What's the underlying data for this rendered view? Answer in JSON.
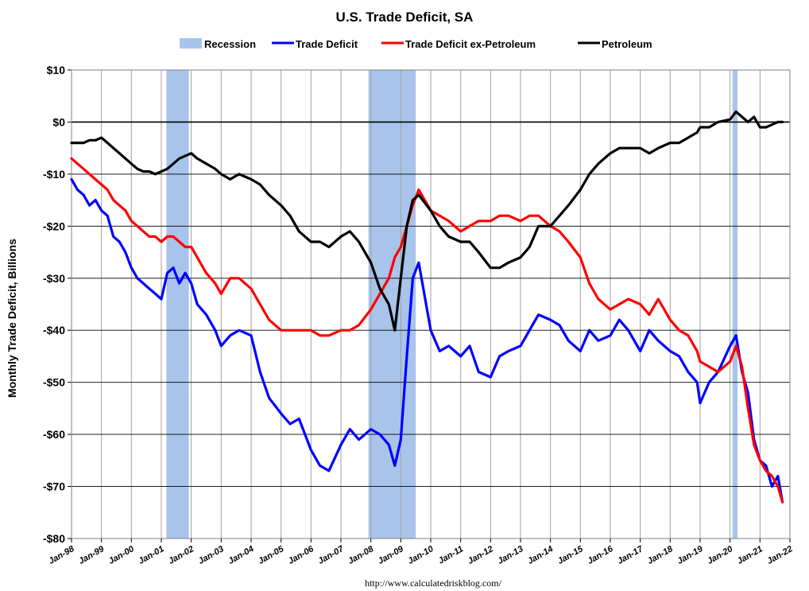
{
  "chart_data": {
    "type": "line",
    "title": "U.S. Trade Deficit, SA",
    "ylabel": "Monthly Trade Deficit, Billions",
    "xlabel": "",
    "source": "http://www.calculatedriskblog.com/",
    "x_start": 1998.0,
    "x_end": 2022.0,
    "ylim": [
      -80,
      10
    ],
    "y_ticks": [
      10,
      0,
      -10,
      -20,
      -30,
      -40,
      -50,
      -60,
      -70,
      -80
    ],
    "y_tick_labels": [
      "$10",
      "$0",
      "-$10",
      "-$20",
      "-$30",
      "-$40",
      "-$50",
      "-$60",
      "-$70",
      "-$80"
    ],
    "x_tick_labels": [
      "Jan-98",
      "Jan-99",
      "Jan-00",
      "Jan-01",
      "Jan-02",
      "Jan-03",
      "Jan-04",
      "Jan-05",
      "Jan-06",
      "Jan-07",
      "Jan-08",
      "Jan-09",
      "Jan-10",
      "Jan-11",
      "Jan-12",
      "Jan-13",
      "Jan-14",
      "Jan-15",
      "Jan-16",
      "Jan-17",
      "Jan-18",
      "Jan-19",
      "Jan-20",
      "Jan-21",
      "Jan-22"
    ],
    "grid": true,
    "legend_position": "top-center",
    "recessions": [
      {
        "start": 2001.17,
        "end": 2001.92
      },
      {
        "start": 2007.92,
        "end": 2009.5
      },
      {
        "start": 2020.08,
        "end": 2020.25
      }
    ],
    "series": [
      {
        "name": "Recession",
        "color": "#a8c4ea",
        "kind": "band"
      },
      {
        "name": "Trade Deficit",
        "color": "#0000ff",
        "x": [
          1998.0,
          1998.2,
          1998.4,
          1998.6,
          1998.8,
          1999.0,
          1999.2,
          1999.4,
          1999.6,
          1999.8,
          2000.0,
          2000.2,
          2000.4,
          2000.6,
          2000.8,
          2001.0,
          2001.2,
          2001.4,
          2001.6,
          2001.8,
          2002.0,
          2002.2,
          2002.5,
          2002.8,
          2003.0,
          2003.3,
          2003.6,
          2004.0,
          2004.3,
          2004.6,
          2005.0,
          2005.3,
          2005.6,
          2006.0,
          2006.3,
          2006.6,
          2007.0,
          2007.3,
          2007.6,
          2008.0,
          2008.3,
          2008.6,
          2008.8,
          2009.0,
          2009.2,
          2009.4,
          2009.6,
          2010.0,
          2010.3,
          2010.6,
          2011.0,
          2011.3,
          2011.6,
          2012.0,
          2012.3,
          2012.6,
          2013.0,
          2013.3,
          2013.6,
          2014.0,
          2014.3,
          2014.6,
          2015.0,
          2015.3,
          2015.6,
          2016.0,
          2016.3,
          2016.6,
          2017.0,
          2017.3,
          2017.6,
          2018.0,
          2018.3,
          2018.6,
          2018.9,
          2019.0,
          2019.3,
          2019.6,
          2020.0,
          2020.2,
          2020.4,
          2020.6,
          2020.8,
          2021.0,
          2021.2,
          2021.4,
          2021.6,
          2021.75
        ],
        "values": [
          -11,
          -13,
          -14,
          -16,
          -15,
          -17,
          -18,
          -22,
          -23,
          -25,
          -28,
          -30,
          -31,
          -32,
          -33,
          -34,
          -29,
          -28,
          -31,
          -29,
          -31,
          -35,
          -37,
          -40,
          -43,
          -41,
          -40,
          -41,
          -48,
          -53,
          -56,
          -58,
          -57,
          -63,
          -66,
          -67,
          -62,
          -59,
          -61,
          -59,
          -60,
          -62,
          -66,
          -61,
          -45,
          -30,
          -27,
          -40,
          -44,
          -43,
          -45,
          -43,
          -48,
          -49,
          -45,
          -44,
          -43,
          -40,
          -37,
          -38,
          -39,
          -42,
          -44,
          -40,
          -42,
          -41,
          -38,
          -40,
          -44,
          -40,
          -42,
          -44,
          -45,
          -48,
          -50,
          -54,
          -50,
          -48,
          -43,
          -41,
          -48,
          -52,
          -61,
          -65,
          -66,
          -70,
          -68,
          -73
        ]
      },
      {
        "name": "Trade Deficit ex-Petroleum",
        "color": "#ff0000",
        "x": [
          1998.0,
          1998.2,
          1998.4,
          1998.6,
          1998.8,
          1999.0,
          1999.2,
          1999.4,
          1999.6,
          1999.8,
          2000.0,
          2000.2,
          2000.4,
          2000.6,
          2000.8,
          2001.0,
          2001.2,
          2001.4,
          2001.6,
          2001.8,
          2002.0,
          2002.2,
          2002.5,
          2002.8,
          2003.0,
          2003.3,
          2003.6,
          2004.0,
          2004.3,
          2004.6,
          2005.0,
          2005.3,
          2005.6,
          2006.0,
          2006.3,
          2006.6,
          2007.0,
          2007.3,
          2007.6,
          2008.0,
          2008.3,
          2008.6,
          2008.8,
          2009.0,
          2009.2,
          2009.4,
          2009.6,
          2010.0,
          2010.3,
          2010.6,
          2011.0,
          2011.3,
          2011.6,
          2012.0,
          2012.3,
          2012.6,
          2013.0,
          2013.3,
          2013.6,
          2014.0,
          2014.3,
          2014.6,
          2015.0,
          2015.3,
          2015.6,
          2016.0,
          2016.3,
          2016.6,
          2017.0,
          2017.3,
          2017.6,
          2018.0,
          2018.3,
          2018.6,
          2018.9,
          2019.0,
          2019.3,
          2019.6,
          2020.0,
          2020.2,
          2020.4,
          2020.6,
          2020.8,
          2021.0,
          2021.2,
          2021.4,
          2021.6,
          2021.75
        ],
        "values": [
          -7,
          -8,
          -9,
          -10,
          -11,
          -12,
          -13,
          -15,
          -16,
          -17,
          -19,
          -20,
          -21,
          -22,
          -22,
          -23,
          -22,
          -22,
          -23,
          -24,
          -24,
          -26,
          -29,
          -31,
          -33,
          -30,
          -30,
          -32,
          -35,
          -38,
          -40,
          -40,
          -40,
          -40,
          -41,
          -41,
          -40,
          -40,
          -39,
          -36,
          -33,
          -30,
          -26,
          -24,
          -20,
          -16,
          -13,
          -17,
          -18,
          -19,
          -21,
          -20,
          -19,
          -19,
          -18,
          -18,
          -19,
          -18,
          -18,
          -20,
          -21,
          -23,
          -26,
          -31,
          -34,
          -36,
          -35,
          -34,
          -35,
          -37,
          -34,
          -38,
          -40,
          -41,
          -44,
          -46,
          -47,
          -48,
          -46,
          -43,
          -47,
          -55,
          -62,
          -65,
          -67,
          -68,
          -70,
          -73
        ]
      },
      {
        "name": "Petroleum",
        "color": "#000000",
        "x": [
          1998.0,
          1998.2,
          1998.4,
          1998.6,
          1998.8,
          1999.0,
          1999.2,
          1999.4,
          1999.6,
          1999.8,
          2000.0,
          2000.2,
          2000.4,
          2000.6,
          2000.8,
          2001.0,
          2001.2,
          2001.4,
          2001.6,
          2001.8,
          2002.0,
          2002.2,
          2002.5,
          2002.8,
          2003.0,
          2003.3,
          2003.6,
          2004.0,
          2004.3,
          2004.6,
          2005.0,
          2005.3,
          2005.6,
          2006.0,
          2006.3,
          2006.6,
          2007.0,
          2007.3,
          2007.6,
          2008.0,
          2008.3,
          2008.6,
          2008.8,
          2009.0,
          2009.2,
          2009.4,
          2009.6,
          2010.0,
          2010.3,
          2010.6,
          2011.0,
          2011.3,
          2011.6,
          2012.0,
          2012.3,
          2012.6,
          2013.0,
          2013.3,
          2013.6,
          2014.0,
          2014.3,
          2014.6,
          2015.0,
          2015.3,
          2015.6,
          2016.0,
          2016.3,
          2016.6,
          2017.0,
          2017.3,
          2017.6,
          2018.0,
          2018.3,
          2018.6,
          2018.9,
          2019.0,
          2019.3,
          2019.6,
          2020.0,
          2020.2,
          2020.4,
          2020.6,
          2020.8,
          2021.0,
          2021.2,
          2021.4,
          2021.6,
          2021.75
        ],
        "values": [
          -4,
          -4,
          -4,
          -3.5,
          -3.5,
          -3,
          -4,
          -5,
          -6,
          -7,
          -8,
          -9,
          -9.5,
          -9.5,
          -10,
          -9.5,
          -9,
          -8,
          -7,
          -6.5,
          -6,
          -7,
          -8,
          -9,
          -10,
          -11,
          -10,
          -11,
          -12,
          -14,
          -16,
          -18,
          -21,
          -23,
          -23,
          -24,
          -22,
          -21,
          -23,
          -27,
          -32,
          -35,
          -40,
          -30,
          -20,
          -15,
          -14,
          -17,
          -20,
          -22,
          -23,
          -23,
          -25,
          -28,
          -28,
          -27,
          -26,
          -24,
          -20,
          -20,
          -18,
          -16,
          -13,
          -10,
          -8,
          -6,
          -5,
          -5,
          -5,
          -6,
          -5,
          -4,
          -4,
          -3,
          -2,
          -1,
          -1,
          0,
          0.5,
          2,
          1,
          0,
          1,
          -1,
          -1,
          -0.5,
          0,
          0
        ]
      }
    ]
  }
}
